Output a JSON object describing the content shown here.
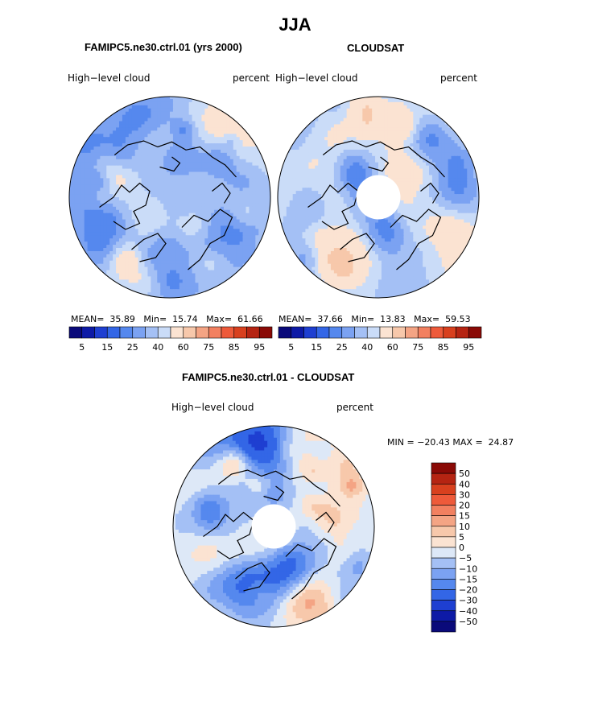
{
  "page": {
    "title": "JJA"
  },
  "colors": {
    "coast": "#000000",
    "hole": "#ffffff"
  },
  "chart_data": [
    {
      "type": "heatmap",
      "projection": "north-polar-stereographic",
      "title": "FAMIPC5.ne30.ctrl.01 (yrs 2000)",
      "variable": "High−level cloud",
      "units": "percent",
      "stats": {
        "mean_label": "MEAN=",
        "mean": "35.89",
        "min_label": "Min=",
        "min": "15.74",
        "max_label": "Max=",
        "max": "61.66"
      },
      "colorbar": {
        "orientation": "horizontal",
        "levels": [
          5,
          10,
          15,
          20,
          25,
          30,
          35,
          40,
          50,
          60,
          70,
          75,
          80,
          85,
          90,
          95
        ],
        "tick_labels": [
          "5",
          "15",
          "25",
          "40",
          "60",
          "75",
          "85",
          "95"
        ],
        "colors": [
          "#0a0a7a",
          "#0d1aa6",
          "#1e3fd1",
          "#3366e6",
          "#5588ee",
          "#7ba2f2",
          "#a4c0f5",
          "#cadcf8",
          "#fbe3d2",
          "#f7c8ab",
          "#f4a484",
          "#f28060",
          "#ee5a3a",
          "#d8401e",
          "#b52412",
          "#8a0a06"
        ]
      },
      "field": {
        "base_value": 33,
        "pole_value": 34,
        "missing_pole": false
      }
    },
    {
      "type": "heatmap",
      "projection": "north-polar-stereographic",
      "title": "CLOUDSAT",
      "variable": "High−level cloud",
      "units": "percent",
      "stats": {
        "mean_label": "MEAN=",
        "mean": "37.66",
        "min_label": "Min=",
        "min": "13.83",
        "max_label": "Max=",
        "max": "59.53"
      },
      "colorbar": {
        "orientation": "horizontal",
        "levels": [
          5,
          10,
          15,
          20,
          25,
          30,
          35,
          40,
          50,
          60,
          70,
          75,
          80,
          85,
          90,
          95
        ],
        "tick_labels": [
          "5",
          "15",
          "25",
          "40",
          "60",
          "75",
          "85",
          "95"
        ],
        "colors": [
          "#0a0a7a",
          "#0d1aa6",
          "#1e3fd1",
          "#3366e6",
          "#5588ee",
          "#7ba2f2",
          "#a4c0f5",
          "#cadcf8",
          "#fbe3d2",
          "#f7c8ab",
          "#f4a484",
          "#f28060",
          "#ee5a3a",
          "#d8401e",
          "#b52412",
          "#8a0a06"
        ]
      },
      "field": {
        "base_value": 38,
        "pole_value": 28,
        "missing_pole": true
      }
    },
    {
      "type": "heatmap",
      "projection": "north-polar-stereographic",
      "title": "FAMIPC5.ne30.ctrl.01 - CLOUDSAT",
      "variable": "High−level cloud",
      "units": "percent",
      "stats": {
        "min_label": "MIN =",
        "min": "−20.43",
        "max_label": "MAX =",
        "max": "24.87"
      },
      "colorbar": {
        "orientation": "vertical",
        "levels": [
          -50,
          -40,
          -30,
          -20,
          -15,
          -10,
          -5,
          0,
          5,
          10,
          15,
          20,
          30,
          40,
          50
        ],
        "tick_labels": [
          "50",
          "40",
          "30",
          "20",
          "15",
          "10",
          "5",
          "0",
          "−5",
          "−10",
          "−15",
          "−20",
          "−30",
          "−40",
          "−50"
        ],
        "colors": [
          "#0a0a7a",
          "#0d1aa6",
          "#1e3fd1",
          "#3366e6",
          "#5588ee",
          "#7ba2f2",
          "#a4c0f5",
          "#dde8f7",
          "#fbe3d2",
          "#f7c8ab",
          "#f4a484",
          "#f28060",
          "#ee5a3a",
          "#d8401e",
          "#b52412",
          "#8a0a06"
        ]
      },
      "field": {
        "base_value": -4,
        "pole_value": 8,
        "missing_pole": true
      }
    }
  ]
}
